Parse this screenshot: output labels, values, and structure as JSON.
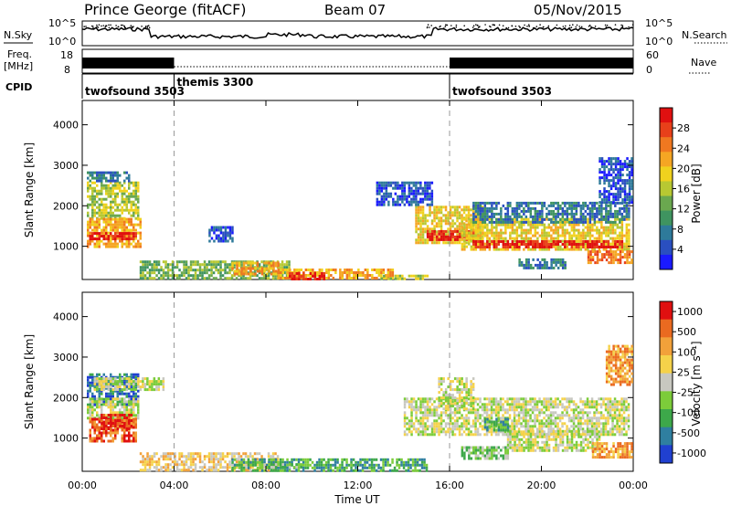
{
  "header": {
    "station": "Prince George (fitACF)",
    "beam": "Beam 07",
    "date": "05/Nov/2015"
  },
  "labels": {
    "nsky": "N.Sky",
    "nsearch": "N.Search",
    "freq_line1": "Freq.",
    "freq_line2": "[MHz]",
    "nave": "Nave",
    "cpid": "CPID",
    "time_axis": "Time UT"
  },
  "ticks": {
    "noise_left": [
      "10^5",
      "10^0"
    ],
    "noise_right": [
      "10^5",
      "10^0"
    ],
    "freq_left": [
      "18",
      "8"
    ],
    "nave_right": [
      "60",
      "0"
    ],
    "time": [
      "00:00",
      "04:00",
      "08:00",
      "12:00",
      "16:00",
      "20:00",
      "00:00"
    ],
    "range": [
      "1000",
      "2000",
      "3000",
      "4000"
    ]
  },
  "cpid_segments": [
    {
      "label": "twofsound 3503",
      "start_h": 0,
      "end_h": 4
    },
    {
      "label": "themis 3300",
      "start_h": 4,
      "end_h": 16
    },
    {
      "label": "twofsound 3503",
      "start_h": 16,
      "end_h": 24
    }
  ],
  "colors": {
    "gs_grey": "#bdbdb5"
  },
  "chart_data": [
    {
      "type": "heatmap",
      "name": "power",
      "xlabel": "Time UT",
      "ylabel": "Slant Range [km]",
      "xlim": [
        0,
        24
      ],
      "ylim": [
        180,
        4600
      ],
      "colorbar": {
        "label": "Power [dB]",
        "ticks": [
          "4",
          "8",
          "12",
          "16",
          "20",
          "24",
          "28"
        ],
        "colors": [
          "#1a1aff",
          "#2a4fc0",
          "#2e7a9a",
          "#3f9460",
          "#6aa84f",
          "#b8c832",
          "#f0d21e",
          "#f5a623",
          "#f07820",
          "#e8401a",
          "#e01010"
        ]
      },
      "regions": [
        {
          "t0": 0.2,
          "t1": 2.4,
          "r0": 1700,
          "r1": 2600,
          "level": 5
        },
        {
          "t0": 0.2,
          "t1": 2.5,
          "r0": 1000,
          "r1": 1700,
          "level": 7
        },
        {
          "t0": 0.3,
          "t1": 2.3,
          "r0": 1150,
          "r1": 1350,
          "level": 10
        },
        {
          "t0": 0.2,
          "t1": 2.0,
          "r0": 2600,
          "r1": 2850,
          "level": 2
        },
        {
          "t0": 2.5,
          "t1": 9.0,
          "r0": 200,
          "r1": 650,
          "level": 4
        },
        {
          "t0": 6.5,
          "t1": 8.5,
          "r0": 300,
          "r1": 620,
          "level": 7
        },
        {
          "t0": 8.5,
          "t1": 13.5,
          "r0": 200,
          "r1": 450,
          "level": 7
        },
        {
          "t0": 9.0,
          "t1": 10.5,
          "r0": 220,
          "r1": 360,
          "level": 10
        },
        {
          "t0": 13.0,
          "t1": 15.0,
          "r0": 200,
          "r1": 300,
          "level": 5
        },
        {
          "t0": 14.5,
          "t1": 17.5,
          "r0": 1100,
          "r1": 2000,
          "level": 6
        },
        {
          "t0": 15.0,
          "t1": 17.0,
          "r0": 1150,
          "r1": 1400,
          "level": 10
        },
        {
          "t0": 16.5,
          "t1": 23.8,
          "r0": 900,
          "r1": 1700,
          "level": 6
        },
        {
          "t0": 17.0,
          "t1": 23.5,
          "r0": 950,
          "r1": 1150,
          "level": 10
        },
        {
          "t0": 17.0,
          "t1": 23.8,
          "r0": 1600,
          "r1": 2100,
          "level": 2
        },
        {
          "t0": 22.0,
          "t1": 23.9,
          "r0": 600,
          "r1": 900,
          "level": 8
        },
        {
          "t0": 22.5,
          "t1": 23.9,
          "r0": 2100,
          "r1": 3200,
          "level": 1
        },
        {
          "t0": 12.8,
          "t1": 15.2,
          "r0": 2000,
          "r1": 2600,
          "level": 1
        },
        {
          "t0": 5.5,
          "t1": 6.5,
          "r0": 1150,
          "r1": 1500,
          "level": 1
        },
        {
          "t0": 19.0,
          "t1": 21.0,
          "r0": 450,
          "r1": 700,
          "level": 2
        }
      ]
    },
    {
      "type": "heatmap",
      "name": "velocity",
      "xlabel": "Time UT",
      "ylabel": "Slant Range [km]",
      "xlim": [
        0,
        24
      ],
      "ylim": [
        180,
        4600
      ],
      "colorbar": {
        "label": "Velocity [m s⁻¹]",
        "ticks": [
          "1000",
          "500",
          "100",
          "25",
          "-25",
          "-100",
          "-500",
          "-1000"
        ],
        "colors": [
          "#2040d0",
          "#2f7fa0",
          "#3da84a",
          "#7ccc3a",
          "#c8c8c0",
          "#f5d24a",
          "#f2a13a",
          "#ea6a20",
          "#e01010"
        ]
      },
      "regions": [
        {
          "t0": 0.2,
          "t1": 2.4,
          "r0": 1800,
          "r1": 2600,
          "level": 1
        },
        {
          "t0": 0.2,
          "t1": 2.4,
          "r0": 1500,
          "r1": 2000,
          "level": 4
        },
        {
          "t0": 0.3,
          "t1": 2.3,
          "r0": 950,
          "r1": 1500,
          "level": 7
        },
        {
          "t0": 0.8,
          "t1": 2.1,
          "r0": 1200,
          "r1": 1600,
          "level": 8
        },
        {
          "t0": 0.5,
          "t1": 3.5,
          "r0": 2200,
          "r1": 2500,
          "level": 4
        },
        {
          "t0": 2.5,
          "t1": 8.5,
          "r0": 200,
          "r1": 650,
          "level": 5
        },
        {
          "t0": 6.5,
          "t1": 15.0,
          "r0": 200,
          "r1": 500,
          "level": 2
        },
        {
          "t0": 7.5,
          "t1": 9.5,
          "r0": 250,
          "r1": 380,
          "level": 3
        },
        {
          "t0": 14.0,
          "t1": 23.8,
          "r0": 1100,
          "r1": 2000,
          "level": 4
        },
        {
          "t0": 15.5,
          "t1": 17.0,
          "r0": 1700,
          "r1": 2500,
          "level": 4
        },
        {
          "t0": 16.5,
          "t1": 18.5,
          "r0": 500,
          "r1": 800,
          "level": 3
        },
        {
          "t0": 18.5,
          "t1": 22.5,
          "r0": 700,
          "r1": 1200,
          "level": 4
        },
        {
          "t0": 22.2,
          "t1": 23.9,
          "r0": 500,
          "r1": 900,
          "level": 6
        },
        {
          "t0": 17.5,
          "t1": 18.5,
          "r0": 1200,
          "r1": 1500,
          "level": 2
        },
        {
          "t0": 22.8,
          "t1": 23.9,
          "r0": 2300,
          "r1": 3300,
          "level": 6
        }
      ]
    }
  ],
  "power_colorbar_title": "Power [dB]",
  "velocity_colorbar_title": "Velocity  [m s⁻¹]"
}
